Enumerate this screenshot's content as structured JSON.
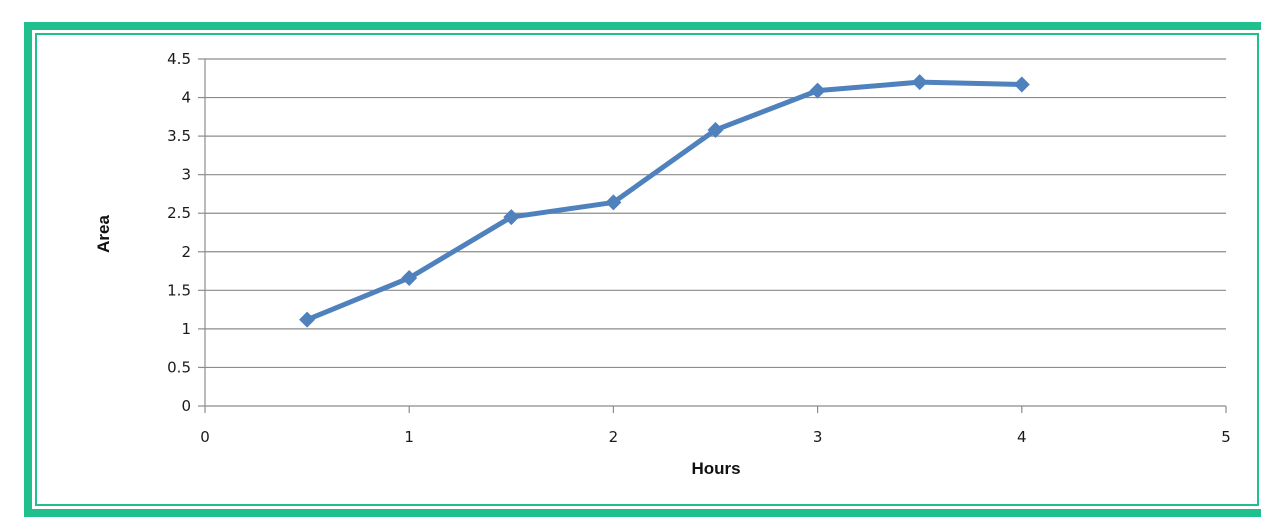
{
  "chart_data": {
    "type": "line",
    "title": "",
    "xlabel": "Hours",
    "ylabel": "Area",
    "xlim": [
      0,
      5
    ],
    "ylim": [
      0,
      4.5
    ],
    "x_ticks": [
      "0",
      "1",
      "2",
      "3",
      "4",
      "5"
    ],
    "y_ticks": [
      "0",
      "0.5",
      "1",
      "1.5",
      "2",
      "2.5",
      "3",
      "3.5",
      "4",
      "4.5"
    ],
    "grid": "horizontal",
    "legend": "none",
    "series": [
      {
        "x": [
          0.5,
          1,
          1.5,
          2,
          2.5,
          3,
          3.5,
          4
        ],
        "y": [
          1.12,
          1.66,
          2.45,
          2.64,
          3.58,
          4.09,
          4.2,
          4.17
        ]
      }
    ]
  },
  "colors": {
    "line": "#4f81bd",
    "frame": "#1fc08e",
    "grid": "#8c8c8c"
  }
}
